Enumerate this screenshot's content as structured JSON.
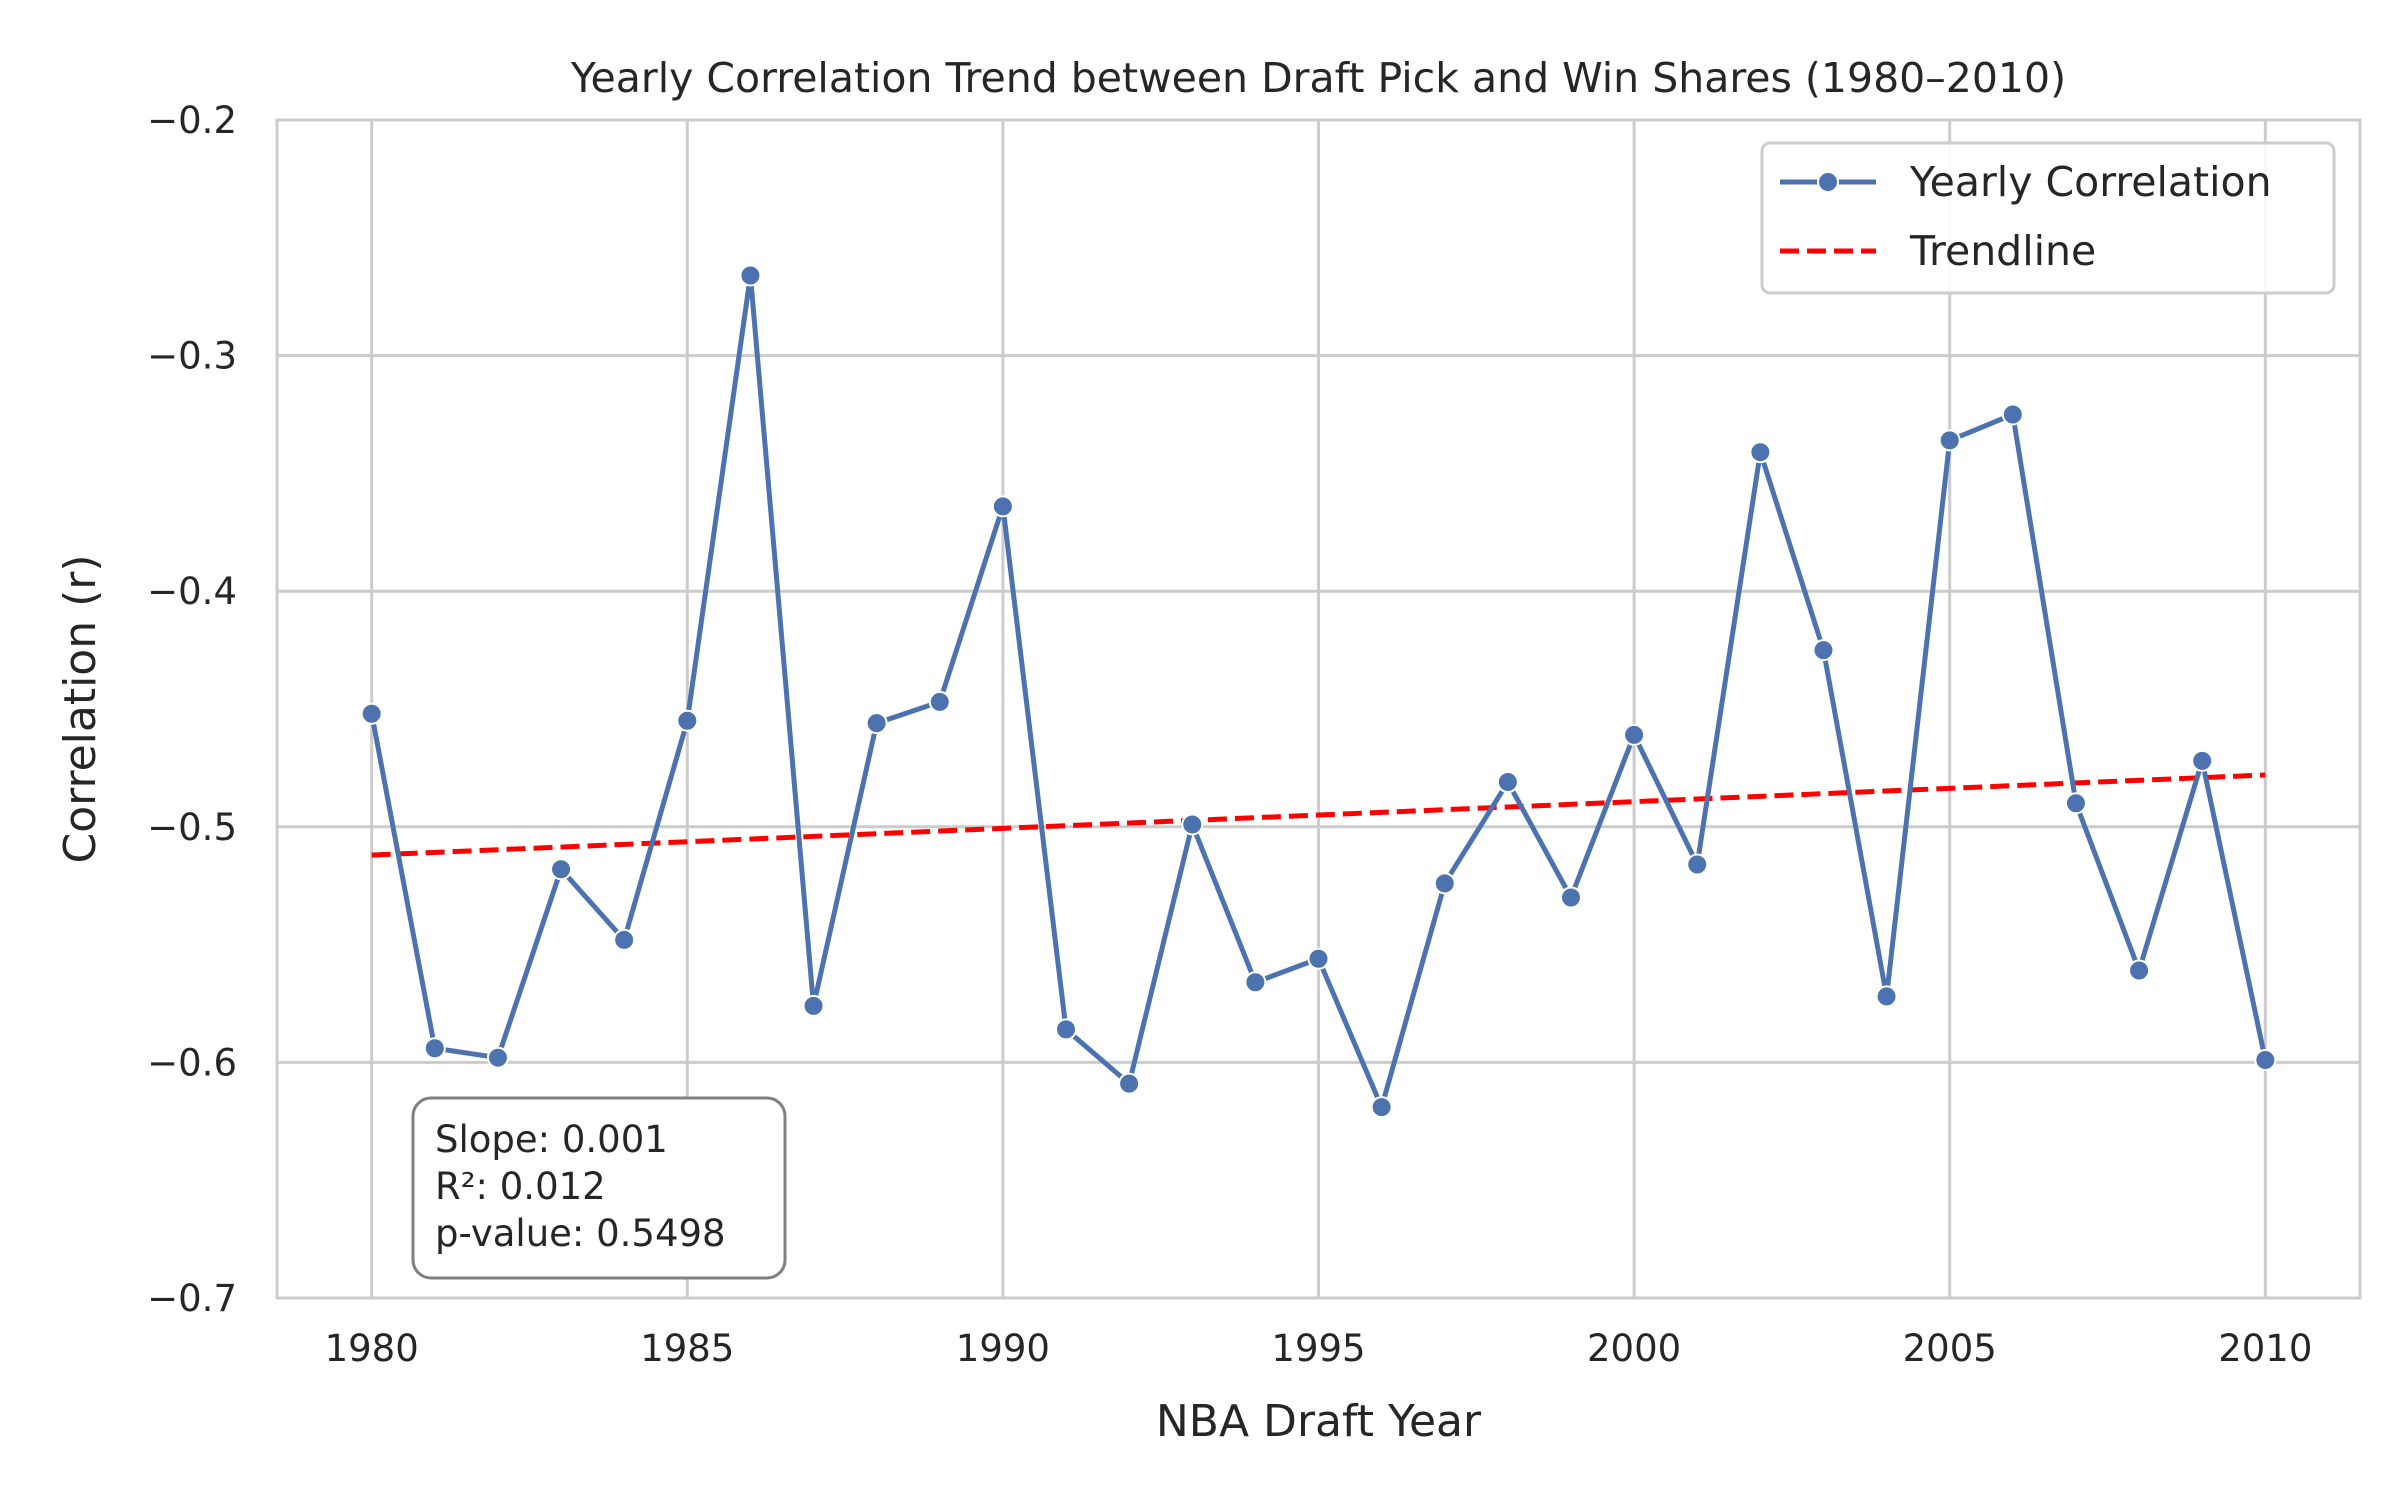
{
  "chart_data": {
    "type": "line",
    "title": "Yearly Correlation Trend between Draft Pick and Win Shares (1980–2010)",
    "xlabel": "NBA Draft Year",
    "ylabel": "Correlation (r)",
    "xlim": [
      1978.5,
      2011.5
    ],
    "ylim": [
      -0.7,
      -0.2
    ],
    "xticks": [
      1980,
      1985,
      1990,
      1995,
      2000,
      2005,
      2010
    ],
    "xtick_labels": [
      "1980",
      "1985",
      "1990",
      "1995",
      "2000",
      "2005",
      "2010"
    ],
    "yticks": [
      -0.7,
      -0.6,
      -0.5,
      -0.4,
      -0.3,
      -0.2
    ],
    "ytick_labels": [
      "−0.7",
      "−0.6",
      "−0.5",
      "−0.4",
      "−0.3",
      "−0.2"
    ],
    "grid": true,
    "legend_position": "top-right",
    "series": [
      {
        "name": "Yearly Correlation",
        "style": "line-marker",
        "color": "#4c72b0",
        "x": [
          1980,
          1981,
          1982,
          1983,
          1984,
          1985,
          1986,
          1987,
          1988,
          1989,
          1990,
          1991,
          1992,
          1993,
          1994,
          1995,
          1996,
          1997,
          1998,
          1999,
          2000,
          2001,
          2002,
          2003,
          2004,
          2005,
          2006,
          2007,
          2008,
          2009,
          2010
        ],
        "y": [
          -0.452,
          -0.594,
          -0.598,
          -0.518,
          -0.548,
          -0.455,
          -0.266,
          -0.576,
          -0.456,
          -0.447,
          -0.364,
          -0.586,
          -0.609,
          -0.499,
          -0.566,
          -0.556,
          -0.619,
          -0.524,
          -0.481,
          -0.53,
          -0.461,
          -0.516,
          -0.341,
          -0.425,
          -0.572,
          -0.336,
          -0.325,
          -0.49,
          -0.561,
          -0.472,
          -0.599
        ]
      },
      {
        "name": "Trendline",
        "style": "dashed",
        "color": "#ff0000",
        "x": [
          1980,
          2010
        ],
        "y": [
          -0.512,
          -0.478
        ]
      }
    ],
    "annotation": {
      "lines": [
        "Slope: 0.001",
        "R²: 0.012",
        "p-value: 0.5498"
      ]
    }
  }
}
